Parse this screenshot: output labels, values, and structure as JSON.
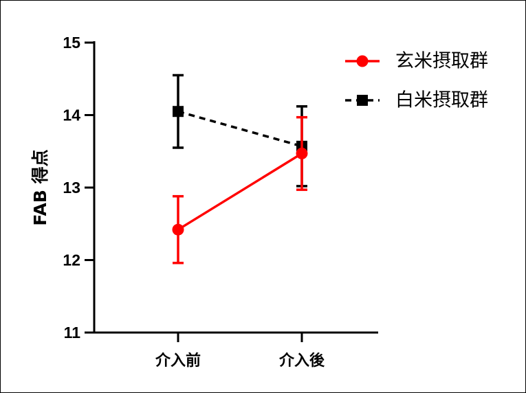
{
  "chart_data": {
    "type": "line",
    "title": "",
    "xlabel": "",
    "ylabel": "FAB 得点",
    "categories": [
      "介入前",
      "介入後"
    ],
    "ylim": [
      11,
      15
    ],
    "yticks": [
      "11",
      "12",
      "13",
      "14",
      "15"
    ],
    "grid": false,
    "legend_position": "top-right",
    "series": [
      {
        "name": "玄米摂取群",
        "color": "#ff0000",
        "line_style": "solid",
        "marker": "circle",
        "values": [
          12.42,
          13.47
        ],
        "error": [
          0.46,
          0.5
        ]
      },
      {
        "name": "白米摂取群",
        "color": "#000000",
        "line_style": "dashed",
        "marker": "square",
        "values": [
          14.05,
          13.57
        ],
        "error": [
          0.5,
          0.55
        ]
      }
    ]
  }
}
